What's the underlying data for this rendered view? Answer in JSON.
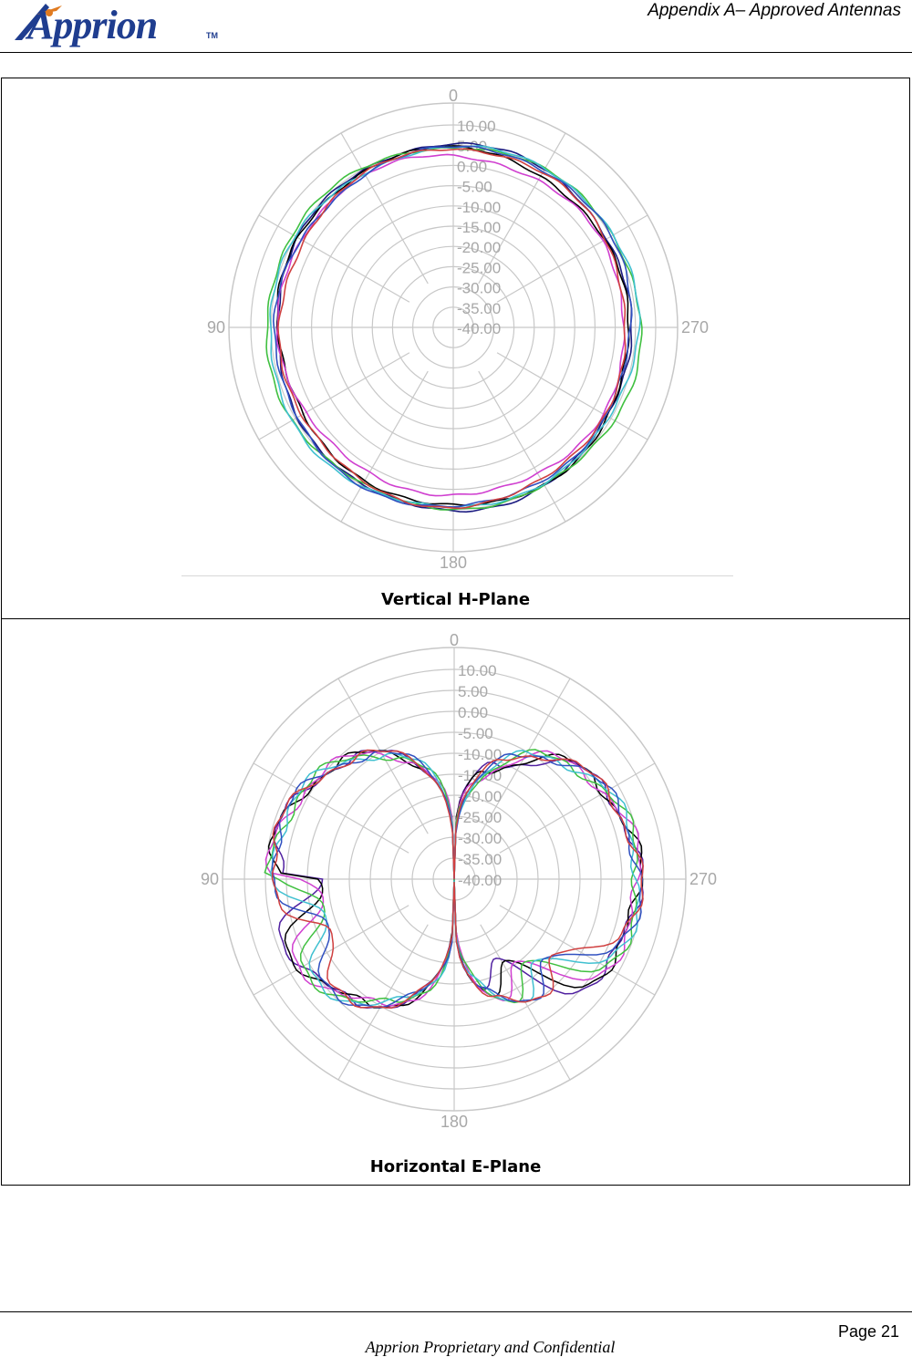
{
  "header": {
    "logo_text": "Apprion",
    "logo_tm": "TM",
    "title": "Appendix A– Approved Antennas"
  },
  "figures": [
    {
      "caption": "Vertical H-Plane",
      "angle_labels": [
        "0",
        "90",
        "180",
        "270"
      ],
      "ring_labels": [
        "10.00",
        "5.00",
        "0.00",
        "-5.00",
        "-10.00",
        "-15.00",
        "-20.00",
        "-25.00",
        "-30.00",
        "-35.00",
        "-40.00"
      ]
    },
    {
      "caption": "Horizontal E-Plane",
      "angle_labels": [
        "0",
        "90",
        "180",
        "270"
      ],
      "ring_labels": [
        "10.00",
        "5.00",
        "0.00",
        "-5.00",
        "-10.00",
        "-15.00",
        "-20.00",
        "-25.00",
        "-30.00",
        "-35.00",
        "-40.00"
      ]
    }
  ],
  "chart_data": [
    {
      "type": "polar",
      "title": "Vertical H-Plane",
      "radial_range": [
        -40,
        10
      ],
      "radial_ticks": [
        10,
        5,
        0,
        -5,
        -10,
        -15,
        -20,
        -25,
        -30,
        -35,
        -40
      ],
      "angle_ticks": [
        0,
        90,
        180,
        270
      ],
      "grid": true,
      "colors": [
        "#1a1a80",
        "#000000",
        "#d040d0",
        "#40c040",
        "#40c0d0",
        "#3050c0",
        "#d04040"
      ],
      "series_gain_db": [
        4.5,
        3.8,
        2.8,
        5.4,
        5.0,
        4.2,
        3.5
      ]
    },
    {
      "type": "polar",
      "title": "Horizontal E-Plane",
      "radial_range": [
        -40,
        10
      ],
      "radial_ticks": [
        10,
        5,
        0,
        -5,
        -10,
        -15,
        -20,
        -25,
        -30,
        -35,
        -40
      ],
      "angle_ticks": [
        0,
        90,
        180,
        270
      ],
      "grid": true,
      "pattern": "multi-lobe, nulls at 0 and 180 deg",
      "colors": [
        "#5020a0",
        "#000000",
        "#d040d0",
        "#40c040",
        "#40c0d0",
        "#3050c0",
        "#d04040"
      ]
    }
  ],
  "footer": {
    "page": "Page 21",
    "confidential": "Apprion Proprietary and Confidential"
  }
}
